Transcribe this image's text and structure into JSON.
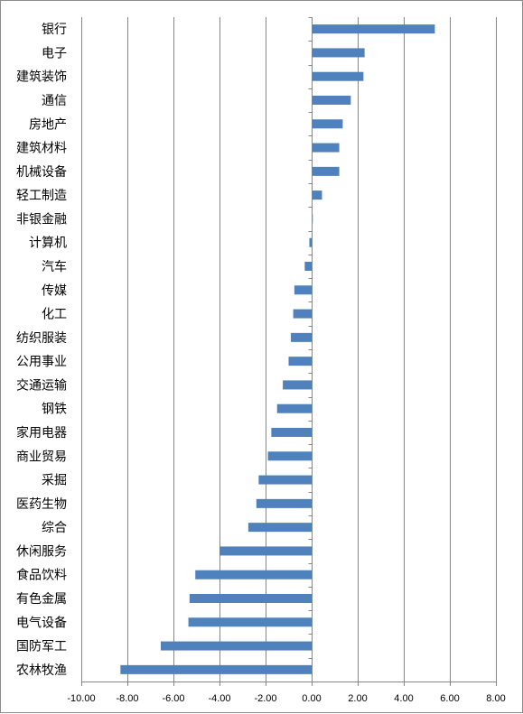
{
  "chart_data": {
    "type": "bar",
    "orientation": "horizontal",
    "title": "",
    "xlabel": "",
    "ylabel": "",
    "xlim": [
      -10,
      8
    ],
    "x_ticks": [
      "-10.00",
      "-8.00",
      "-6.00",
      "-4.00",
      "-2.00",
      "0.00",
      "2.00",
      "4.00",
      "6.00",
      "8.00"
    ],
    "x_tick_values": [
      -10,
      -8,
      -6,
      -4,
      -2,
      0,
      2,
      4,
      6,
      8
    ],
    "grid": "vertical major gridlines",
    "legend": "none",
    "bar_color": "#4f81bd",
    "categories": [
      "银行",
      "电子",
      "建筑装饰",
      "通信",
      "房地产",
      "建筑材料",
      "机械设备",
      "轻工制造",
      "非银金融",
      "计算机",
      "汽车",
      "传媒",
      "化工",
      "纺织服装",
      "公用事业",
      "交通运输",
      "钢铁",
      "家用电器",
      "商业贸易",
      "采掘",
      "医药生物",
      "综合",
      "休闲服务",
      "食品饮料",
      "有色金属",
      "电气设备",
      "国防军工",
      "农林牧渔"
    ],
    "values": [
      5.35,
      2.3,
      2.25,
      1.7,
      1.35,
      1.2,
      1.2,
      0.45,
      0.05,
      -0.1,
      -0.3,
      -0.75,
      -0.8,
      -0.9,
      -1.0,
      -1.25,
      -1.5,
      -1.75,
      -1.9,
      -2.3,
      -2.4,
      -2.75,
      -4.0,
      -5.05,
      -5.3,
      -5.35,
      -6.55,
      -8.3
    ]
  }
}
